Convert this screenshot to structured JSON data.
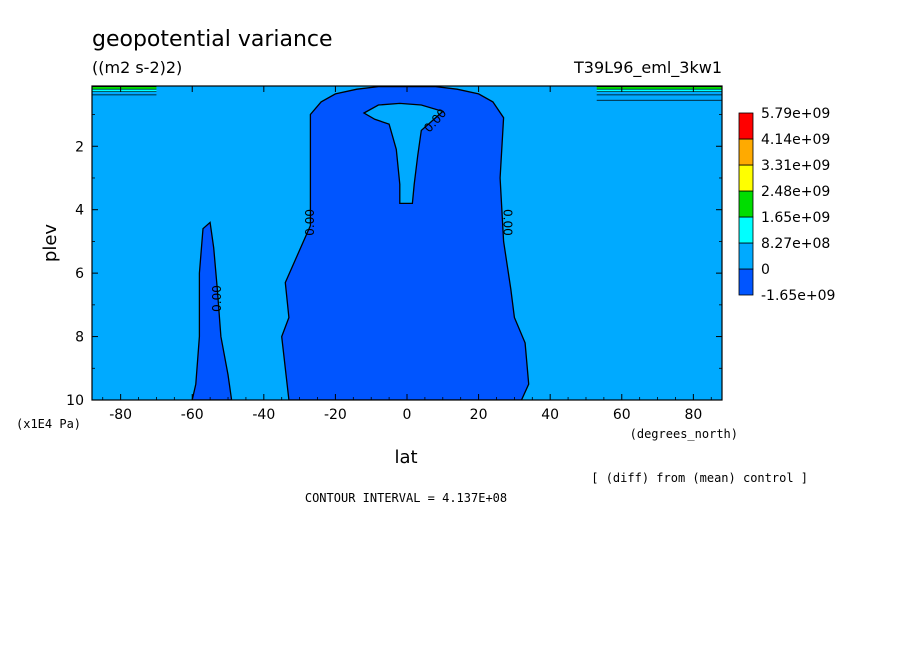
{
  "chart_data": {
    "type": "contour",
    "title": "geopotential variance",
    "units": "((m2 s-2)2)",
    "run": "T39L96_eml_3kw1",
    "xlabel": "lat",
    "xunits": "(degrees_north)",
    "ylabel": "plev",
    "yunits": "(x1E4 Pa)",
    "xlim": [
      -88,
      88
    ],
    "ylim": [
      10,
      0.1
    ],
    "xticks": [
      -80,
      -60,
      -40,
      -20,
      0,
      20,
      40,
      60,
      80
    ],
    "xtick_labels": [
      "-80",
      "-60",
      "-40",
      "-20",
      "0",
      "20",
      "40",
      "60",
      "80"
    ],
    "yticks": [
      2,
      4,
      6,
      8,
      10
    ],
    "ytick_labels": [
      "2",
      "4",
      "6",
      "8",
      "10"
    ],
    "contour_interval_text": "CONTOUR INTERVAL = 4.137E+08",
    "note": "[ (diff) from (mean) control ]",
    "contour_label": "0.00",
    "legend": {
      "position": "right",
      "colors": [
        "#0055ff",
        "#00aaff",
        "#00ffff",
        "#00dd00",
        "#ffff00",
        "#ffaa00",
        "#ff0000"
      ],
      "labels": [
        "-1.65e+09",
        "0",
        "8.27e+08",
        "1.65e+09",
        "2.48e+09",
        "3.31e+09",
        "4.14e+09",
        "5.79e+09"
      ]
    },
    "regions": {
      "background_level": "0 to 8.27e+08",
      "negative_level": "-1.65e+09 to 0",
      "central_negative_region": [
        [
          -33,
          10
        ],
        [
          -35,
          8
        ],
        [
          -33,
          7.4
        ],
        [
          -34,
          6.3
        ],
        [
          -27,
          4.5
        ],
        [
          -27,
          1
        ],
        [
          -24,
          0.6
        ],
        [
          -20,
          0.35
        ],
        [
          -14,
          0.2
        ],
        [
          -8,
          0.12
        ],
        [
          8,
          0.12
        ],
        [
          14,
          0.2
        ],
        [
          20,
          0.35
        ],
        [
          24,
          0.6
        ],
        [
          27,
          1.1
        ],
        [
          26,
          3
        ],
        [
          27,
          5
        ],
        [
          29,
          6.5
        ],
        [
          30,
          7.4
        ],
        [
          33,
          8.2
        ],
        [
          34,
          9.5
        ],
        [
          32,
          10
        ]
      ],
      "central_positive_tongue": [
        [
          -12,
          0.95
        ],
        [
          -8,
          0.7
        ],
        [
          -2,
          0.65
        ],
        [
          4,
          0.7
        ],
        [
          10,
          0.9
        ],
        [
          6,
          1.3
        ],
        [
          4,
          1.5
        ],
        [
          3,
          2.3
        ],
        [
          2,
          3.2
        ],
        [
          1.5,
          3.8
        ],
        [
          -2,
          3.8
        ],
        [
          -2,
          3.2
        ],
        [
          -3,
          2.1
        ],
        [
          -5,
          1.3
        ],
        [
          -9,
          1.15
        ]
      ],
      "sh_negative_tongue": [
        [
          -60,
          10
        ],
        [
          -59,
          9.5
        ],
        [
          -58,
          8
        ],
        [
          -58,
          6
        ],
        [
          -57,
          4.6
        ],
        [
          -55,
          4.4
        ],
        [
          -54,
          5.2
        ],
        [
          -53,
          6.5
        ],
        [
          -52,
          8
        ],
        [
          -50,
          9.2
        ],
        [
          -49,
          10
        ]
      ],
      "polar_cap_bands": [
        {
          "name": "south",
          "x": [
            -88,
            -70
          ],
          "levels": [
            0.12,
            0.2,
            0.28,
            0.38
          ]
        },
        {
          "name": "north",
          "x": [
            53,
            88
          ],
          "levels": [
            0.12,
            0.2,
            0.28,
            0.38,
            0.55
          ]
        }
      ]
    },
    "contour_label_positions": [
      {
        "x": 8,
        "y": 1.2,
        "angle": -48
      },
      {
        "x": -27,
        "y": 4.4,
        "angle": -90
      },
      {
        "x": 28,
        "y": 4.4,
        "angle": 90
      },
      {
        "x": -53,
        "y": 6.8,
        "angle": -90
      }
    ]
  }
}
